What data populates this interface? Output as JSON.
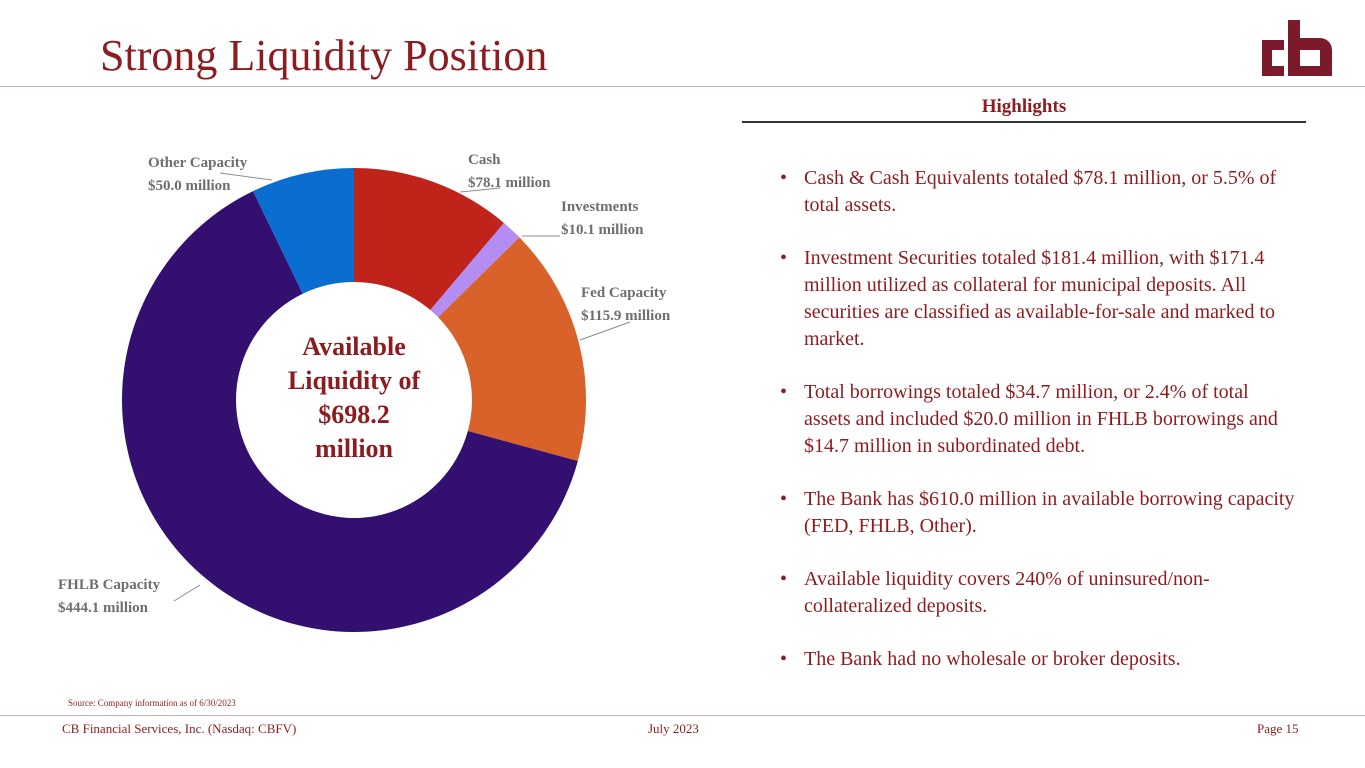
{
  "title": "Strong Liquidity Position",
  "logo": {
    "name": "cb-logo",
    "color": "#7a1a2a"
  },
  "chart_data": {
    "type": "pie",
    "donut": true,
    "start_angle_deg": 0,
    "direction": "clockwise",
    "center_label": [
      "Available",
      "Liquidity of",
      "$698.2",
      "million"
    ],
    "slices": [
      {
        "name": "Cash",
        "value_label": "$78.1 million",
        "value": 78.1,
        "color": "#c0231a"
      },
      {
        "name": "Investments",
        "value_label": "$10.1 million",
        "value": 10.1,
        "color": "#b48df2"
      },
      {
        "name": "Fed Capacity",
        "value_label": "$115.9 million",
        "value": 115.9,
        "color": "#d9622b"
      },
      {
        "name": "FHLB Capacity",
        "value_label": "$444.1 million",
        "value": 444.1,
        "color": "#330f70"
      },
      {
        "name": "Other Capacity",
        "value_label": "$50.0 million",
        "value": 50.0,
        "color": "#0a6ed1"
      }
    ]
  },
  "highlights": {
    "heading": "Highlights",
    "bullets": [
      "Cash & Cash Equivalents totaled $78.1 million, or 5.5% of total assets.",
      "Investment Securities totaled $181.4 million, with $171.4 million utilized as collateral for municipal deposits. All securities are classified as available-for-sale and marked to market.",
      "Total borrowings totaled $34.7 million, or 2.4% of total assets and included $20.0 million in FHLB borrowings and $14.7 million in subordinated debt.",
      "The Bank has $610.0 million in available borrowing capacity (FED, FHLB, Other).",
      "Available liquidity covers 240% of uninsured/non-collateralized deposits.",
      "The Bank had no wholesale or broker deposits."
    ]
  },
  "source": "Source: Company information as of 6/30/2023",
  "footer": {
    "company": "CB Financial Services, Inc. (Nasdaq: CBFV)",
    "date": "July 2023",
    "page": "Page 15"
  }
}
